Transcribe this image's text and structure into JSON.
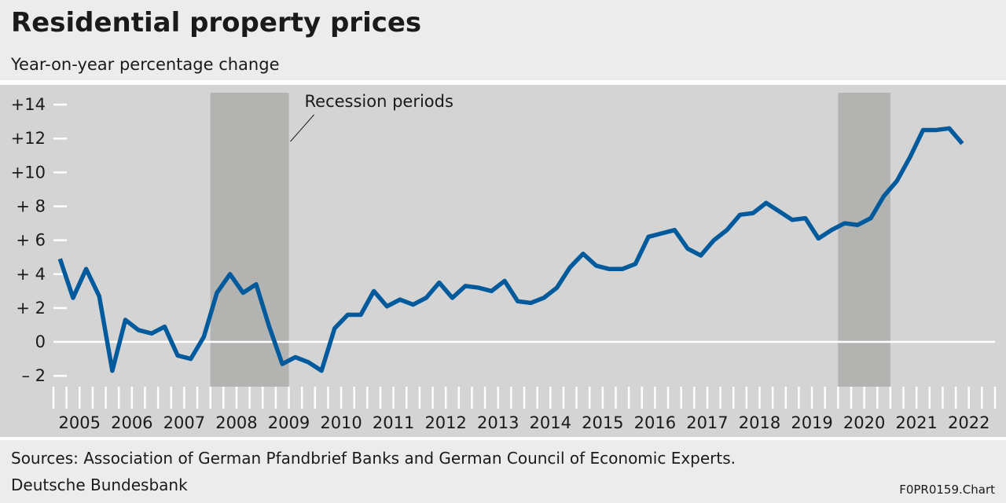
{
  "chart_data": {
    "type": "line",
    "title": "Residential property prices",
    "subtitle": "Year-on-year percentage change",
    "annotation": "Recession periods",
    "recessions": [
      [
        2008,
        2009.5
      ],
      [
        2020,
        2021
      ]
    ],
    "x": [
      2005.125,
      2005.375,
      2005.625,
      2005.875,
      2006.125,
      2006.375,
      2006.625,
      2006.875,
      2007.125,
      2007.375,
      2007.625,
      2007.875,
      2008.125,
      2008.375,
      2008.625,
      2008.875,
      2009.125,
      2009.375,
      2009.625,
      2009.875,
      2010.125,
      2010.375,
      2010.625,
      2010.875,
      2011.125,
      2011.375,
      2011.625,
      2011.875,
      2012.125,
      2012.375,
      2012.625,
      2012.875,
      2013.125,
      2013.375,
      2013.625,
      2013.875,
      2014.125,
      2014.375,
      2014.625,
      2014.875,
      2015.125,
      2015.375,
      2015.625,
      2015.875,
      2016.125,
      2016.375,
      2016.625,
      2016.875,
      2017.125,
      2017.375,
      2017.625,
      2017.875,
      2018.125,
      2018.375,
      2018.625,
      2018.875,
      2019.125,
      2019.375,
      2019.625,
      2019.875,
      2020.125,
      2020.375,
      2020.625,
      2020.875,
      2021.125,
      2021.375,
      2021.625,
      2021.875,
      2022.125,
      2022.375
    ],
    "series": [
      {
        "name": "Residential property prices",
        "color": "#005a9b",
        "values": [
          4.9,
          2.6,
          4.3,
          2.7,
          -1.7,
          1.3,
          0.7,
          0.5,
          0.9,
          -0.8,
          -1.0,
          0.3,
          2.9,
          4.0,
          2.9,
          3.4,
          0.9,
          -1.3,
          -0.9,
          -1.2,
          -1.7,
          0.8,
          1.6,
          1.6,
          3.0,
          2.1,
          2.5,
          2.2,
          2.6,
          3.5,
          2.6,
          3.3,
          3.2,
          3.0,
          3.6,
          2.4,
          2.3,
          2.6,
          3.2,
          4.4,
          5.2,
          4.5,
          4.3,
          4.3,
          4.6,
          6.2,
          6.4,
          6.6,
          5.5,
          5.1,
          6.0,
          6.6,
          7.5,
          7.6,
          8.2,
          7.7,
          7.2,
          7.3,
          6.1,
          6.6,
          7.0,
          6.9,
          7.3,
          8.6,
          9.5,
          10.9,
          12.5,
          12.5,
          12.6,
          11.7
        ]
      }
    ],
    "xlim": [
      2005,
      2023
    ],
    "xticks": [
      2005,
      2006,
      2007,
      2008,
      2009,
      2010,
      2011,
      2012,
      2013,
      2014,
      2015,
      2016,
      2017,
      2018,
      2019,
      2020,
      2021,
      2022,
      2023
    ],
    "x_labels": [
      "2005",
      "2006",
      "2007",
      "2008",
      "2009",
      "2010",
      "2011",
      "2012",
      "2013",
      "2014",
      "2015",
      "2016",
      "2017",
      "2018",
      "2019",
      "2020",
      "2021",
      "2022"
    ],
    "ylim": [
      -2.64,
      14.7
    ],
    "yticks": [
      {
        "value": 14,
        "label": "+14"
      },
      {
        "value": 12,
        "label": "+12"
      },
      {
        "value": 10,
        "label": "+10"
      },
      {
        "value": 8,
        "label": "+ 8"
      },
      {
        "value": 6,
        "label": "+ 6"
      },
      {
        "value": 4,
        "label": "+ 4"
      },
      {
        "value": 2,
        "label": "+ 2"
      },
      0,
      {
        "value": -2,
        "label": "– 2"
      }
    ],
    "source": "Sources: Association of German Pfandbrief Banks and German Council of Economic Experts.",
    "publisher": "Deutsche Bundesbank",
    "chart_id": "F0PR0159.Chart"
  }
}
